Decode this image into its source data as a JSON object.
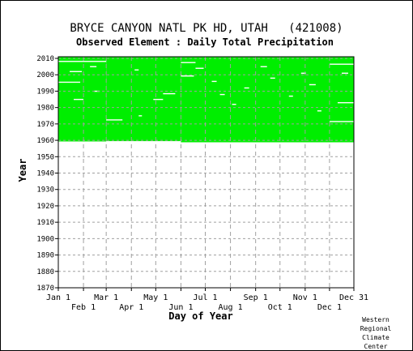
{
  "chart_data": {
    "type": "heatmap",
    "title": "BRYCE CANYON NATL PK HD, UTAH   (421008)",
    "subtitle": "Observed Element : Daily Total Precipitation",
    "xlabel": "Day of Year",
    "ylabel": "Year",
    "xlim": [
      1,
      365
    ],
    "ylim": [
      1870,
      2011
    ],
    "x_ticks_upper": [
      {
        "label": "Jan 1",
        "day": 1
      },
      {
        "label": "Mar 1",
        "day": 60
      },
      {
        "label": "May 1",
        "day": 121
      },
      {
        "label": "Jul 1",
        "day": 182
      },
      {
        "label": "Sep 1",
        "day": 244
      },
      {
        "label": "Nov 1",
        "day": 305
      },
      {
        "label": "Dec 31",
        "day": 365
      }
    ],
    "x_ticks_lower": [
      {
        "label": "Feb 1",
        "day": 32
      },
      {
        "label": "Apr 1",
        "day": 91
      },
      {
        "label": "Jun 1",
        "day": 152
      },
      {
        "label": "Aug 1",
        "day": 213
      },
      {
        "label": "Oct 1",
        "day": 274
      },
      {
        "label": "Dec 1",
        "day": 335
      }
    ],
    "y_ticks": [
      1870,
      1880,
      1890,
      1900,
      1910,
      1920,
      1930,
      1940,
      1950,
      1960,
      1970,
      1980,
      1990,
      2000,
      2010
    ],
    "grid": true,
    "data_color": "#00ee00",
    "coverage": [
      {
        "from_day": 1,
        "to_day": 60,
        "from_year": 1959.3,
        "to_year": 2011
      },
      {
        "from_day": 60,
        "to_day": 152,
        "from_year": 1959.5,
        "to_year": 2011
      },
      {
        "from_day": 152,
        "to_day": 365,
        "from_year": 1958.8,
        "to_year": 2011
      }
    ],
    "gaps": [
      {
        "from_day": 1,
        "to_day": 60,
        "year": 2008.2
      },
      {
        "from_day": 1,
        "to_day": 28,
        "year": 1995.5
      },
      {
        "from_day": 60,
        "to_day": 80,
        "year": 1972.5
      },
      {
        "from_day": 152,
        "to_day": 170,
        "year": 2007.5
      },
      {
        "from_day": 152,
        "to_day": 168,
        "year": 1999.3
      },
      {
        "from_day": 335,
        "to_day": 365,
        "year": 2006.5
      },
      {
        "from_day": 335,
        "to_day": 365,
        "year": 1971.5
      },
      {
        "from_day": 345,
        "to_day": 365,
        "year": 1983
      },
      {
        "from_day": 130,
        "to_day": 145,
        "year": 1988.5
      },
      {
        "from_day": 118,
        "to_day": 130,
        "year": 1985
      },
      {
        "from_day": 15,
        "to_day": 30,
        "year": 2002
      },
      {
        "from_day": 20,
        "to_day": 32,
        "year": 1985
      },
      {
        "from_day": 40,
        "to_day": 48,
        "year": 2005
      },
      {
        "from_day": 45,
        "to_day": 52,
        "year": 1990
      },
      {
        "from_day": 95,
        "to_day": 100,
        "year": 2003
      },
      {
        "from_day": 170,
        "to_day": 180,
        "year": 2004
      },
      {
        "from_day": 190,
        "to_day": 196,
        "year": 1996
      },
      {
        "from_day": 200,
        "to_day": 206,
        "year": 1988
      },
      {
        "from_day": 230,
        "to_day": 236,
        "year": 1992
      },
      {
        "from_day": 250,
        "to_day": 258,
        "year": 2005
      },
      {
        "from_day": 262,
        "to_day": 268,
        "year": 1998
      },
      {
        "from_day": 285,
        "to_day": 290,
        "year": 1987
      },
      {
        "from_day": 300,
        "to_day": 306,
        "year": 2001
      },
      {
        "from_day": 310,
        "to_day": 318,
        "year": 1994
      },
      {
        "from_day": 320,
        "to_day": 325,
        "year": 1978
      },
      {
        "from_day": 350,
        "to_day": 358,
        "year": 2001
      },
      {
        "from_day": 100,
        "to_day": 104,
        "year": 1975
      },
      {
        "from_day": 215,
        "to_day": 220,
        "year": 1982
      }
    ]
  },
  "credit": [
    "Western",
    "Regional",
    "Climate",
    "Center"
  ]
}
